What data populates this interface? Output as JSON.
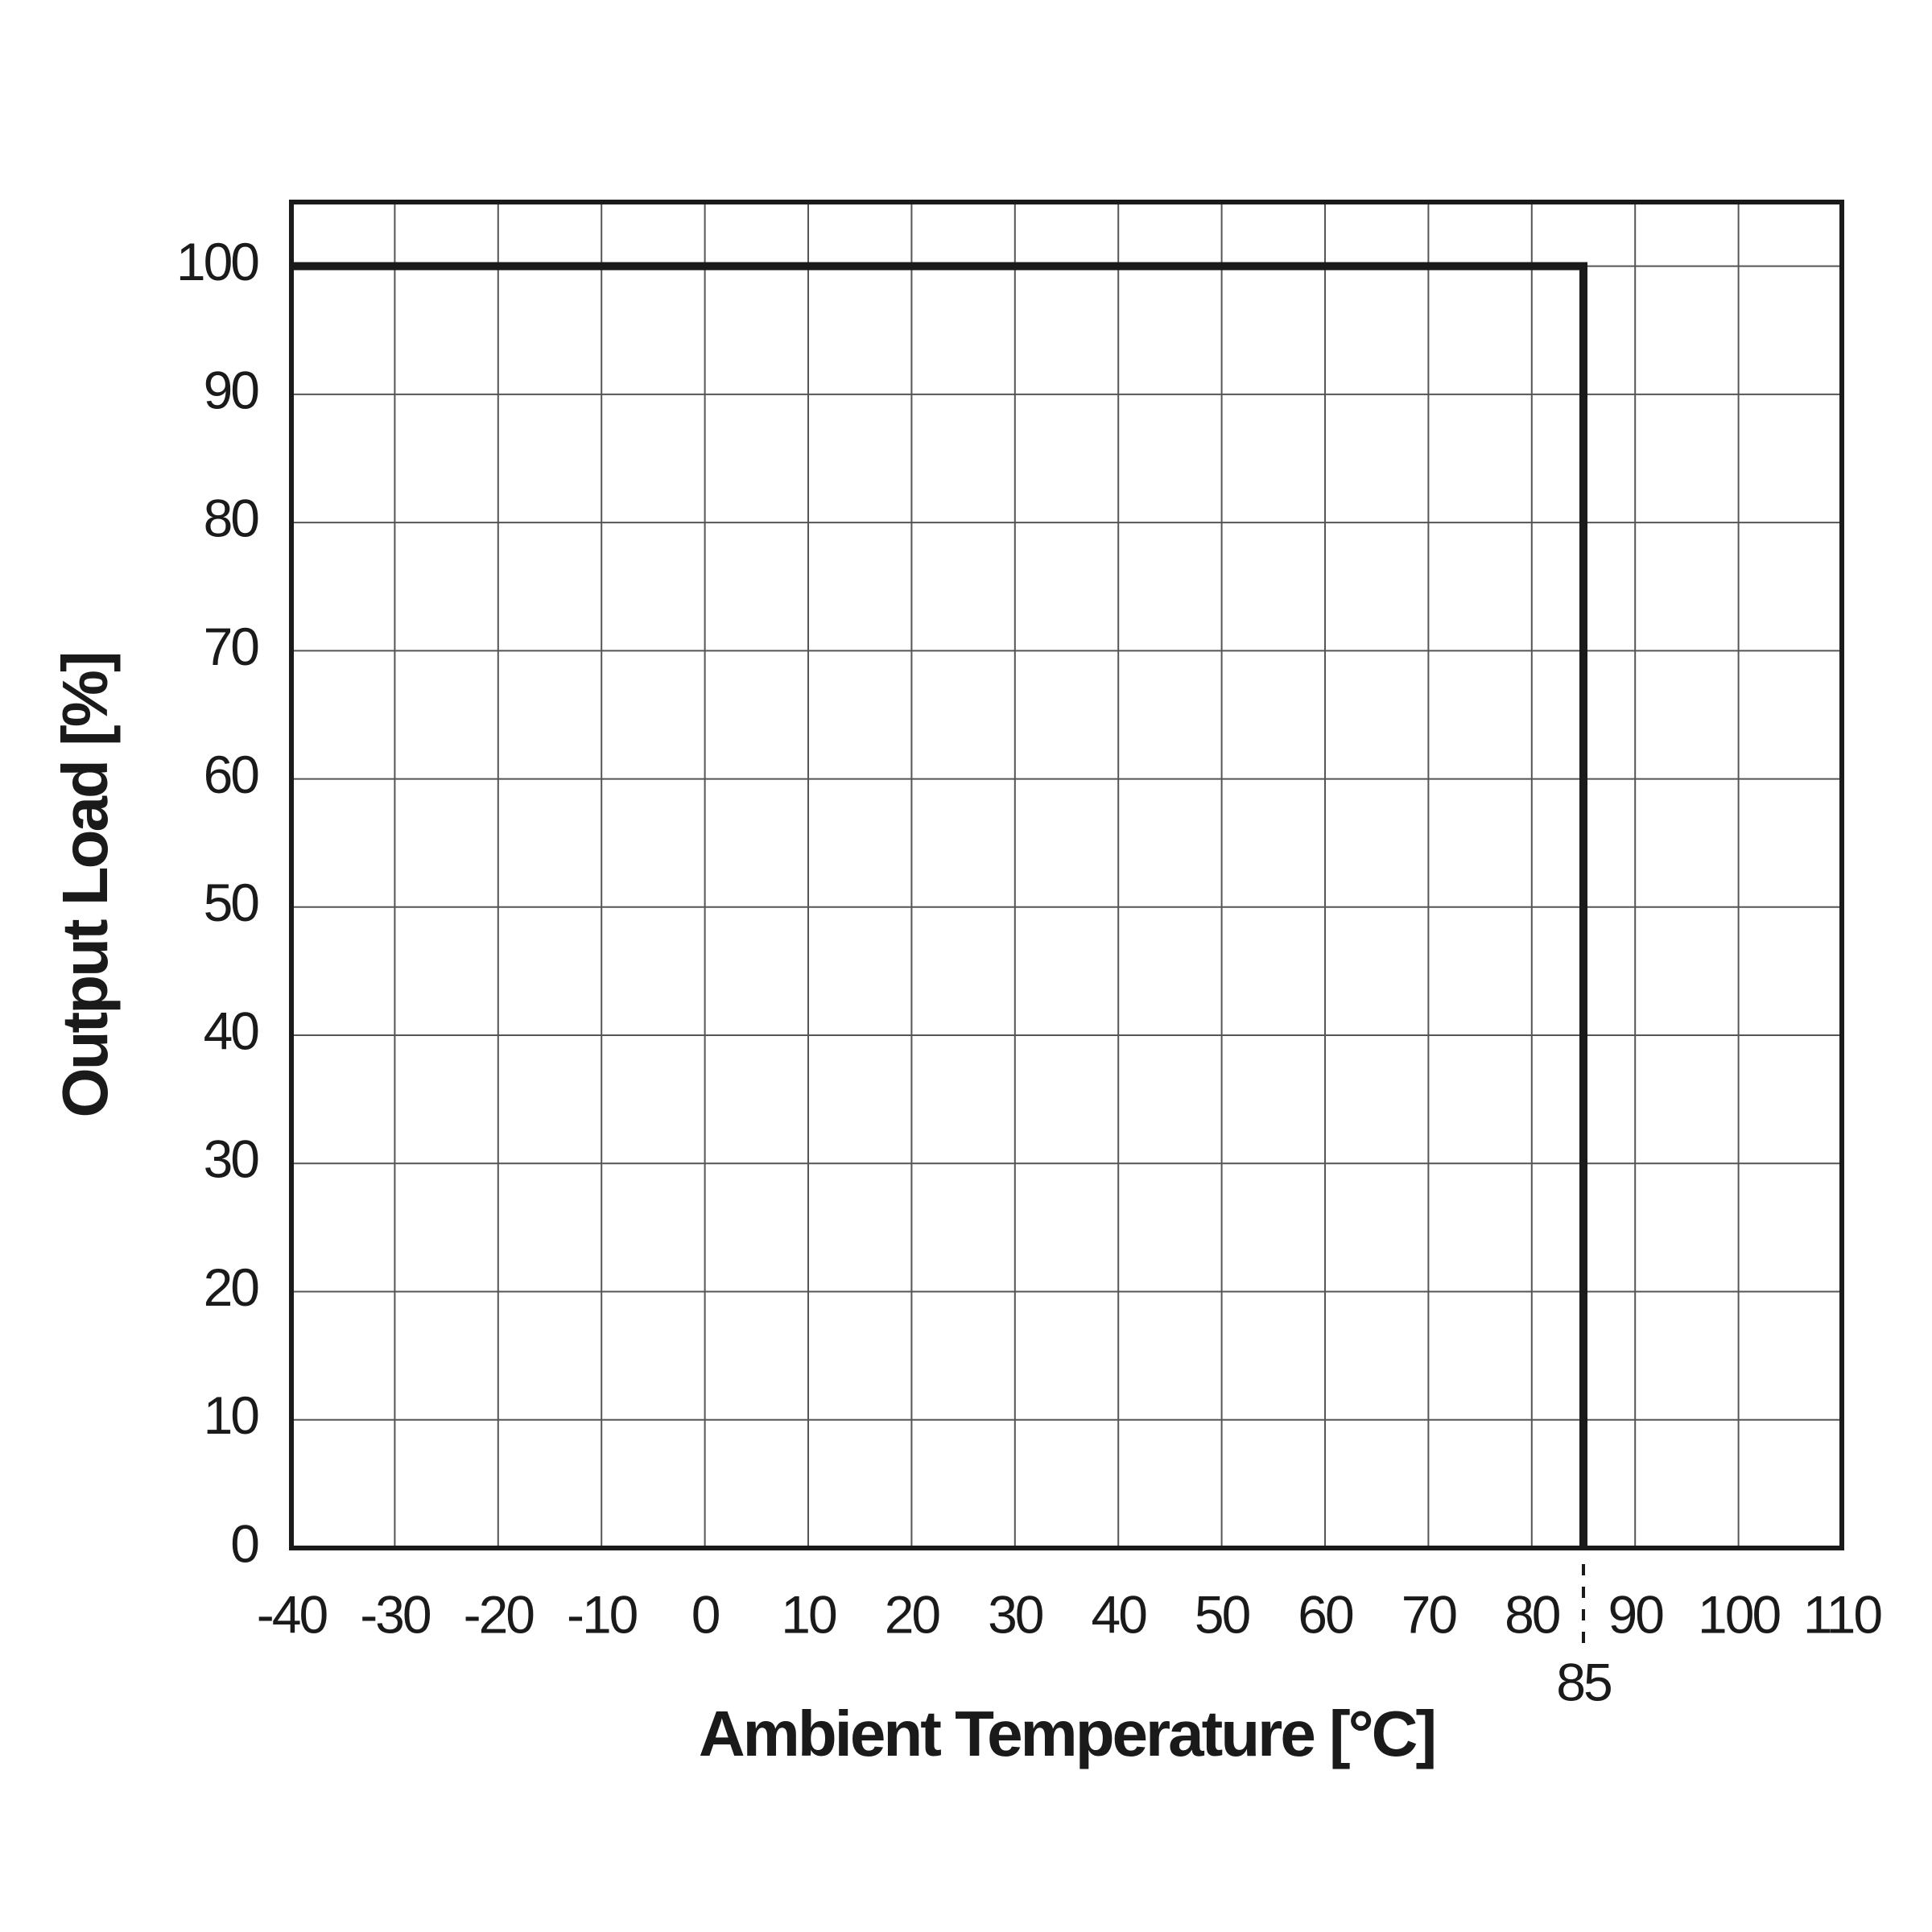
{
  "chart_data": {
    "type": "line",
    "x_label": "Ambient Temperature [°C]",
    "y_label": "Output Load [%]",
    "x": [
      -40,
      85,
      85
    ],
    "values": [
      100,
      100,
      0
    ],
    "color": "#1a1a1a",
    "xlim": [
      -40,
      110
    ],
    "ylim": [
      0,
      105
    ],
    "xticks": [
      -40,
      -30,
      -20,
      -10,
      0,
      10,
      20,
      30,
      40,
      50,
      60,
      70,
      80,
      90,
      100,
      110
    ],
    "yticks": [
      0,
      10,
      20,
      30,
      40,
      50,
      60,
      70,
      80,
      90,
      100
    ],
    "grid": true,
    "annotations": [
      {
        "text": "85",
        "x": 85
      }
    ]
  }
}
